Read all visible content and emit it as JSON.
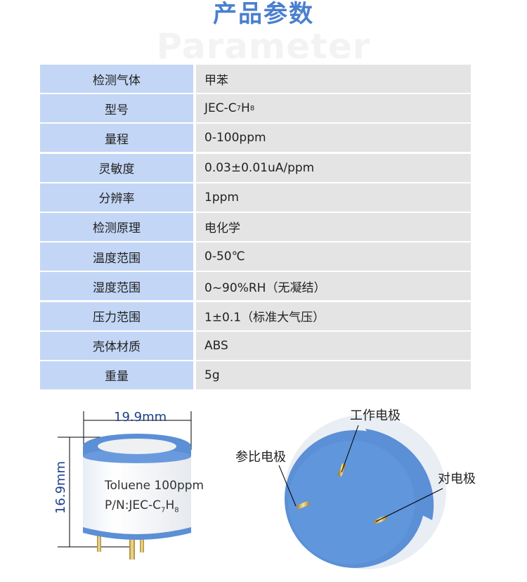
{
  "header": {
    "title": "产品参数",
    "watermark": "Parameter"
  },
  "params": [
    {
      "label": "检测气体",
      "value": "甲苯"
    },
    {
      "label": "型号",
      "value": "JEC-C",
      "sub1": "7",
      "mid": "H",
      "sub2": "8"
    },
    {
      "label": "量程",
      "value": "0-100ppm"
    },
    {
      "label": "灵敏度",
      "value": "0.03±0.01uA/ppm"
    },
    {
      "label": "分辨率",
      "value": "1ppm"
    },
    {
      "label": "检测原理",
      "value": "电化学"
    },
    {
      "label": "温度范围",
      "value": "0-50℃"
    },
    {
      "label": "湿度范围",
      "value": "0~90%RH（无凝结）"
    },
    {
      "label": "压力范围",
      "value": "1±0.1（标准大气压）"
    },
    {
      "label": "壳体材质",
      "value": "ABS"
    },
    {
      "label": "重量",
      "value": "5g"
    }
  ],
  "diagram": {
    "width_label": "19.9mm",
    "height_label": "16.9mm",
    "sensor_text1": "Toluene 100ppm",
    "sensor_text2": "P/N:JEC-C",
    "sensor_sub1": "7",
    "sensor_mid": "H",
    "sensor_sub2": "8",
    "electrode_work": "工作电极",
    "electrode_ref": "参比电极",
    "electrode_counter": "对电极"
  },
  "colors": {
    "title": "#4a7fcf",
    "label_bg": "#c3d6f5",
    "value_bg": "#e4e4e4",
    "sensor_blue": "#5b8fd6"
  }
}
